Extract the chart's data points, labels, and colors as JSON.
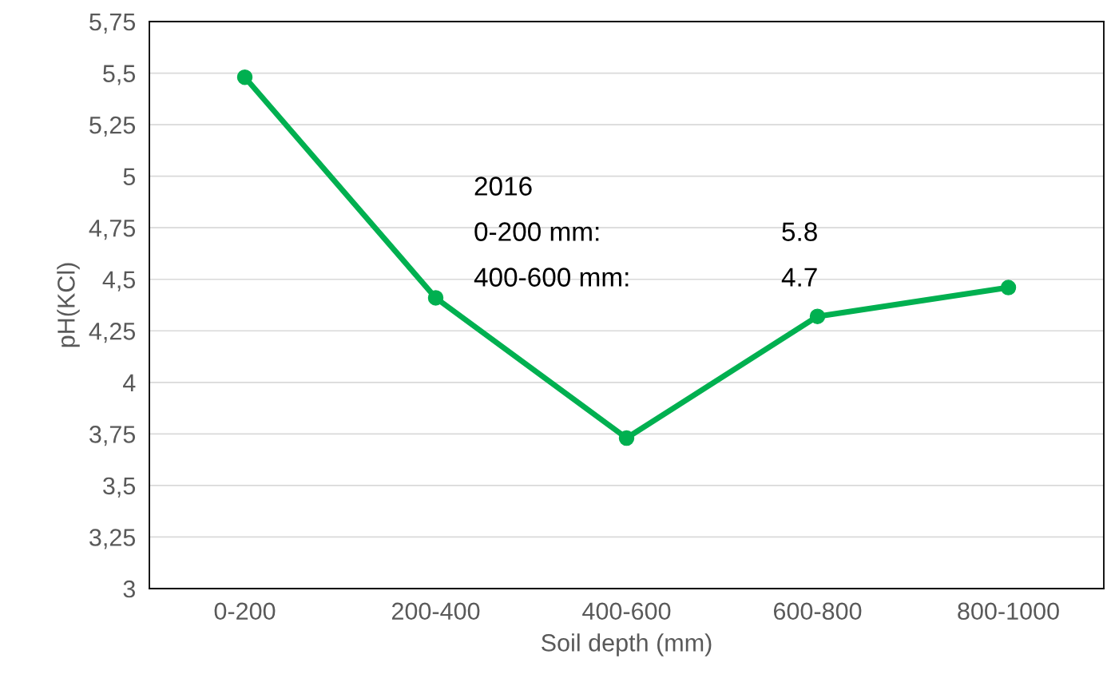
{
  "chart_data": {
    "type": "line",
    "xlabel": "Soil depth (mm)",
    "ylabel": "pH(KCl)",
    "categories": [
      "0-200",
      "200-400",
      "400-600",
      "600-800",
      "800-1000"
    ],
    "series": [
      {
        "color": "#00b050",
        "values": [
          5.48,
          4.41,
          3.73,
          4.32,
          4.46
        ]
      }
    ],
    "ylim": [
      3,
      5.75
    ],
    "yticks": [
      {
        "value": 3,
        "label": "3"
      },
      {
        "value": 3.25,
        "label": "3,25"
      },
      {
        "value": 3.5,
        "label": "3,5"
      },
      {
        "value": 3.75,
        "label": "3,75"
      },
      {
        "value": 4,
        "label": "4"
      },
      {
        "value": 4.25,
        "label": "4,25"
      },
      {
        "value": 4.5,
        "label": "4,5"
      },
      {
        "value": 4.75,
        "label": "4,75"
      },
      {
        "value": 5,
        "label": "5"
      },
      {
        "value": 5.25,
        "label": "5,25"
      },
      {
        "value": 5.5,
        "label": "5,5"
      },
      {
        "value": 5.75,
        "label": "5,75"
      }
    ],
    "grid": "y",
    "marker": "circle",
    "line_style": "solid",
    "annotations": [
      "2016",
      "0-200 mm:",
      "5.8",
      "400-600 mm:",
      "4.7"
    ]
  }
}
